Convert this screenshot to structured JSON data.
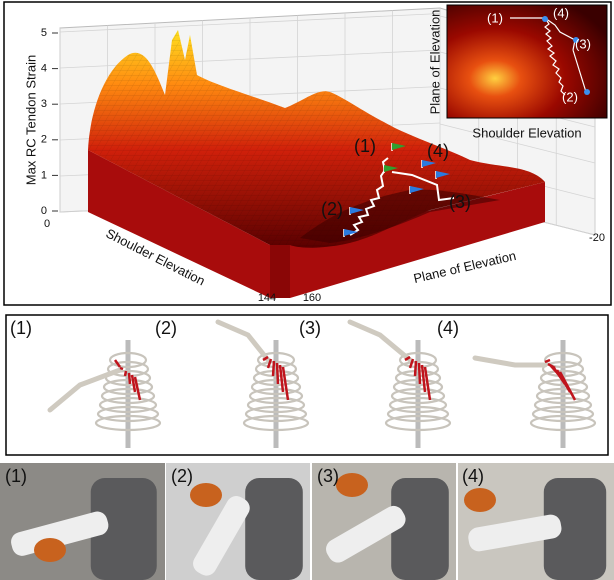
{
  "surface_plot": {
    "z_label": "Max RC Tendon Strain",
    "x_label": "Shoulder Elevation",
    "y_label": "Plane of Elevation",
    "z_ticks": [
      5,
      4,
      3,
      2,
      1,
      0
    ],
    "x_ticks": [
      0,
      144
    ],
    "y_ticks": [
      160,
      -20
    ],
    "markers": [
      "(1)",
      "(2)",
      "(3)",
      "(4)"
    ]
  },
  "inset": {
    "x_label": "Shoulder Elevation",
    "y_label": "Plane of Elevation",
    "markers": [
      "(1)",
      "(2)",
      "(3)",
      "(4)"
    ]
  },
  "skeleton_panel": {
    "labels": [
      "(1)",
      "(2)",
      "(3)",
      "(4)"
    ]
  },
  "photo_panel": {
    "labels": [
      "(1)",
      "(2)",
      "(3)",
      "(4)"
    ]
  }
}
